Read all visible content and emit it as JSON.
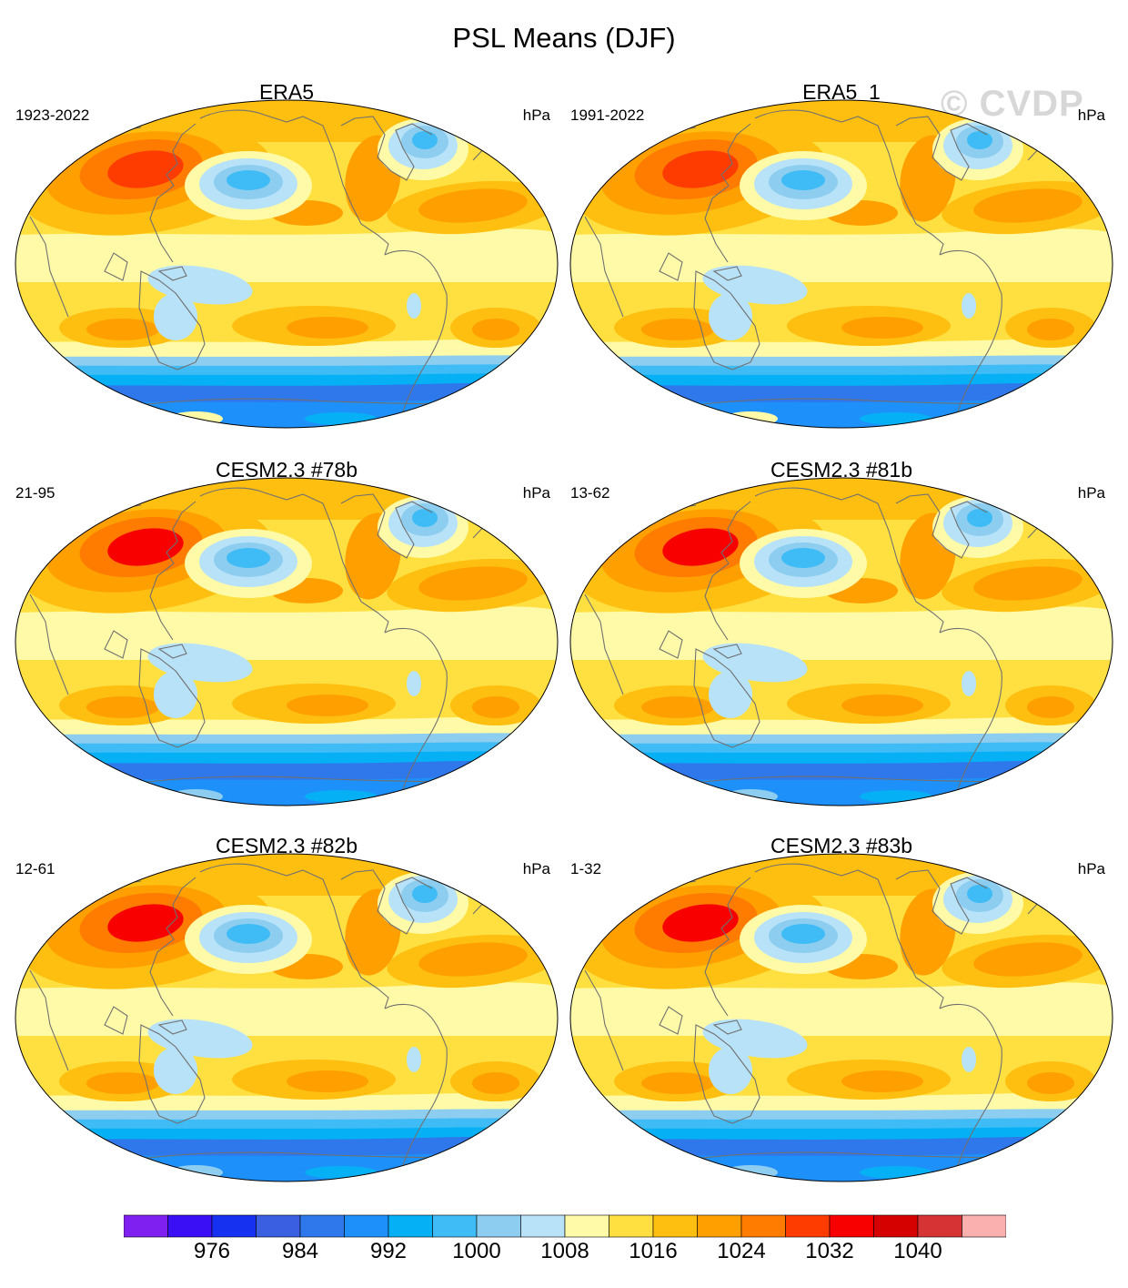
{
  "title": "PSL Means (DJF)",
  "watermark": "© CVDP",
  "units": "hPa",
  "panels": [
    {
      "title": "ERA5",
      "years": "1923-2022"
    },
    {
      "title": "ERA5_1",
      "years": "1991-2022"
    },
    {
      "title": "CESM2.3 #78b",
      "years": "21-95"
    },
    {
      "title": "CESM2.3 #81b",
      "years": "13-62"
    },
    {
      "title": "CESM2.3 #82b",
      "years": "12-61"
    },
    {
      "title": "CESM2.3 #83b",
      "years": "1-32"
    }
  ],
  "colorbar": {
    "colors": [
      "#7f1ff0",
      "#3b0ff5",
      "#1631f0",
      "#3a5fe0",
      "#2f78ec",
      "#1e90fa",
      "#05b0f5",
      "#3fbcf5",
      "#8ccdf0",
      "#b8e2f8",
      "#fffaa8",
      "#ffe040",
      "#ffbf10",
      "#ffa000",
      "#ff7c00",
      "#ff3c00",
      "#f80000",
      "#d50000",
      "#d63434",
      "#fbb0b0"
    ],
    "labels": [
      "976",
      "984",
      "992",
      "1000",
      "1008",
      "1016",
      "1024",
      "1032",
      "1040"
    ]
  }
}
